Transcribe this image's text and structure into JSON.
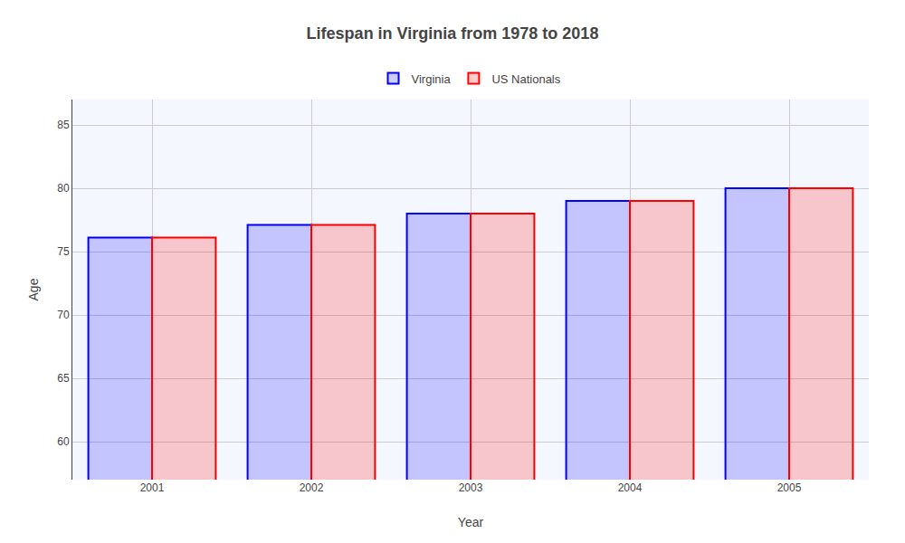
{
  "chart_data": {
    "type": "bar",
    "title": "Lifespan in Virginia from 1978 to 2018",
    "xlabel": "Year",
    "ylabel": "Age",
    "categories": [
      "2001",
      "2002",
      "2003",
      "2004",
      "2005"
    ],
    "series": [
      {
        "name": "Virginia",
        "color": "#0000ff",
        "values": [
          76.1,
          77.1,
          78.0,
          79.0,
          80.0
        ]
      },
      {
        "name": "US Nationals",
        "color": "#ff0000",
        "values": [
          76.1,
          77.1,
          78.0,
          79.0,
          80.0
        ]
      }
    ],
    "ylim": [
      57,
      87
    ],
    "yticks": [
      60,
      65,
      70,
      75,
      80,
      85
    ],
    "grid": true,
    "legend": "top"
  }
}
